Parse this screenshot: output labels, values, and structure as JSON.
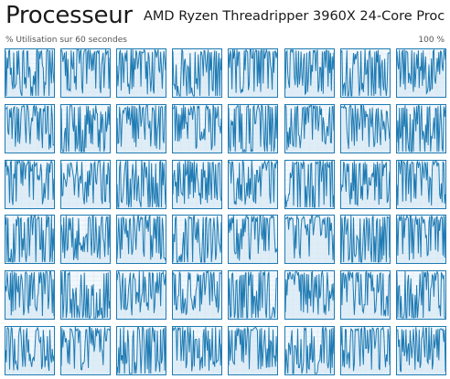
{
  "header": {
    "title": "Processeur",
    "cpu_name": "AMD Ryzen Threadripper 3960X 24-Core Proc..."
  },
  "graph": {
    "utilization_label": "% Utilisation sur 60 secondes",
    "max_label": "100 %",
    "columns": 8,
    "rows": 6,
    "line_color": "#1f7bb3",
    "fill_color": "#d3e6f4",
    "border_color": "#1f7bb3",
    "grid_color": "#dde9f3"
  }
}
